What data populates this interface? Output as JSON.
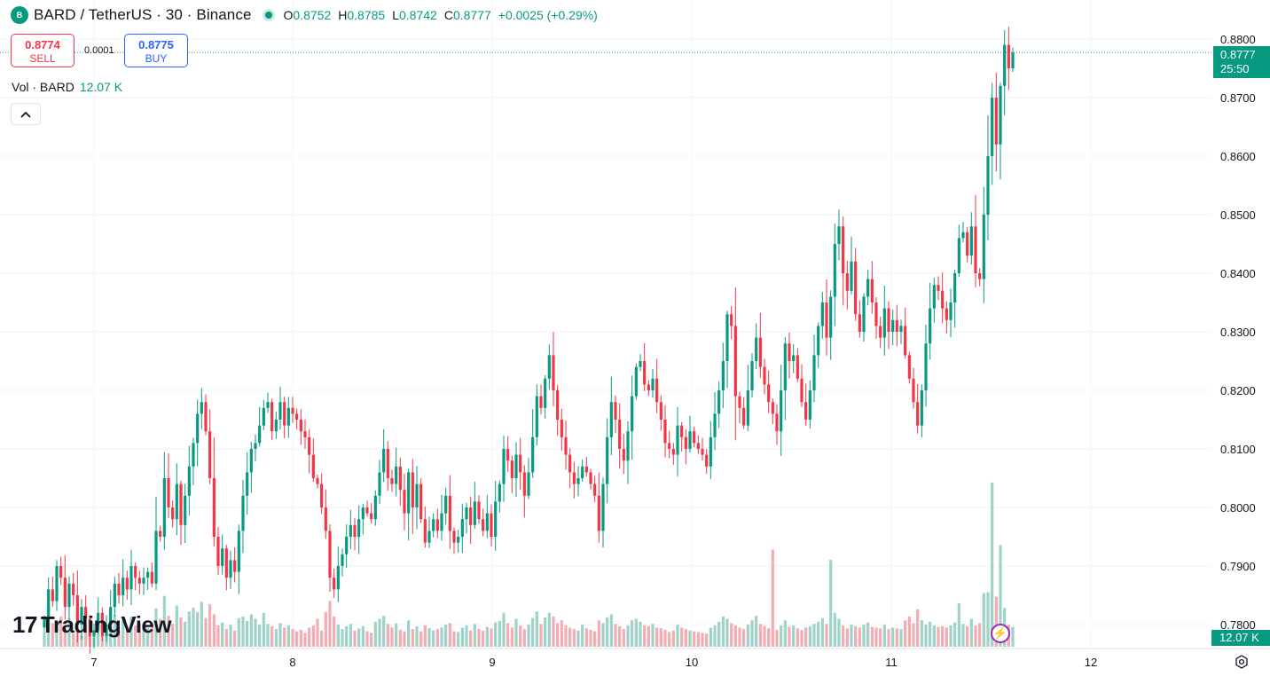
{
  "header": {
    "logo_icon": "bard-coin-icon",
    "symbol": "BARD / TetherUS · 30 · Binance",
    "ohlc": {
      "o_label": "O",
      "o": "0.8752",
      "h_label": "H",
      "h": "0.8785",
      "l_label": "L",
      "l": "0.8742",
      "c_label": "C",
      "c": "0.8777",
      "change": "+0.0025 (+0.29%)"
    }
  },
  "trade": {
    "sell_price": "0.8774",
    "sell_label": "SELL",
    "spread": "0.0001",
    "buy_price": "0.8775",
    "buy_label": "BUY"
  },
  "volume_legend": {
    "label": "Vol · BARD",
    "value": "12.07 K"
  },
  "branding": {
    "name": "TradingView"
  },
  "price_tag": {
    "price": "0.8777",
    "countdown": "25:50"
  },
  "volume_tag": "12.07 K",
  "colors": {
    "up": "#089981",
    "down": "#f23645",
    "up_vol": "#9fd3c9",
    "down_vol": "#f2aeb3",
    "grid": "#f0f3fa"
  },
  "chart_data": {
    "type": "candlestick",
    "interval": "30",
    "x_ticks": [
      "7",
      "8",
      "9",
      "10",
      "11",
      "12"
    ],
    "y_ticks": [
      "0.7800",
      "0.7900",
      "0.8000",
      "0.8100",
      "0.8200",
      "0.8300",
      "0.8400",
      "0.8500",
      "0.8600",
      "0.8700",
      "0.8800"
    ],
    "ylim": [
      0.7785,
      0.8835
    ],
    "last_price": 0.8777,
    "candles_per_day": 48,
    "start_offset_candles": 12,
    "grid": true,
    "volume_last": "12.07 K",
    "close_path": [
      0.781,
      0.786,
      0.784,
      0.79,
      0.788,
      0.783,
      0.787,
      0.785,
      0.78,
      0.783,
      0.781,
      0.778,
      0.779,
      0.782,
      0.778,
      0.78,
      0.783,
      0.787,
      0.785,
      0.788,
      0.786,
      0.79,
      0.788,
      0.787,
      0.788,
      0.789,
      0.787,
      0.796,
      0.795,
      0.805,
      0.8,
      0.798,
      0.804,
      0.797,
      0.802,
      0.807,
      0.811,
      0.816,
      0.818,
      0.813,
      0.805,
      0.795,
      0.79,
      0.793,
      0.788,
      0.791,
      0.789,
      0.796,
      0.802,
      0.806,
      0.81,
      0.811,
      0.814,
      0.817,
      0.818,
      0.813,
      0.815,
      0.818,
      0.814,
      0.817,
      0.816,
      0.815,
      0.813,
      0.812,
      0.809,
      0.805,
      0.804,
      0.8,
      0.796,
      0.788,
      0.786,
      0.79,
      0.792,
      0.795,
      0.797,
      0.795,
      0.798,
      0.8,
      0.799,
      0.798,
      0.802,
      0.806,
      0.81,
      0.805,
      0.804,
      0.807,
      0.803,
      0.799,
      0.806,
      0.8,
      0.804,
      0.798,
      0.794,
      0.796,
      0.798,
      0.796,
      0.799,
      0.802,
      0.796,
      0.794,
      0.795,
      0.798,
      0.8,
      0.797,
      0.801,
      0.798,
      0.796,
      0.799,
      0.795,
      0.801,
      0.804,
      0.81,
      0.808,
      0.805,
      0.809,
      0.806,
      0.802,
      0.806,
      0.812,
      0.819,
      0.817,
      0.822,
      0.826,
      0.82,
      0.815,
      0.812,
      0.809,
      0.806,
      0.804,
      0.805,
      0.807,
      0.806,
      0.804,
      0.802,
      0.796,
      0.804,
      0.812,
      0.818,
      0.815,
      0.81,
      0.808,
      0.813,
      0.819,
      0.824,
      0.825,
      0.821,
      0.82,
      0.822,
      0.818,
      0.815,
      0.811,
      0.81,
      0.809,
      0.814,
      0.812,
      0.81,
      0.813,
      0.811,
      0.81,
      0.809,
      0.807,
      0.812,
      0.816,
      0.82,
      0.825,
      0.833,
      0.831,
      0.819,
      0.817,
      0.814,
      0.82,
      0.825,
      0.829,
      0.824,
      0.821,
      0.818,
      0.816,
      0.813,
      0.82,
      0.828,
      0.825,
      0.826,
      0.822,
      0.818,
      0.815,
      0.82,
      0.826,
      0.831,
      0.835,
      0.829,
      0.836,
      0.845,
      0.848,
      0.84,
      0.837,
      0.842,
      0.833,
      0.83,
      0.836,
      0.839,
      0.835,
      0.831,
      0.829,
      0.834,
      0.83,
      0.832,
      0.83,
      0.831,
      0.826,
      0.822,
      0.818,
      0.814,
      0.82,
      0.828,
      0.834,
      0.838,
      0.837,
      0.834,
      0.832,
      0.835,
      0.84,
      0.846,
      0.847,
      0.843,
      0.848,
      0.84,
      0.839,
      0.85,
      0.86,
      0.87,
      0.862,
      0.872,
      0.879,
      0.875,
      0.8777
    ],
    "volume_path": [
      2.1,
      5.7,
      3.2,
      2.8,
      4.1,
      2.5,
      3.9,
      1.8,
      2.4,
      1.6,
      2.9,
      1.4,
      1.9,
      2.2,
      1.5,
      2.4,
      3.0,
      4.3,
      2.1,
      3.6,
      2.8,
      4.1,
      2.9,
      3.2,
      3.0,
      2.6,
      2.9,
      5.2,
      3.8,
      6.9,
      4.2,
      3.1,
      5.6,
      4.0,
      3.4,
      4.8,
      5.3,
      4.7,
      6.1,
      3.9,
      5.8,
      4.4,
      2.9,
      3.3,
      2.4,
      3.0,
      2.2,
      3.9,
      4.1,
      3.5,
      4.4,
      3.8,
      3.0,
      4.6,
      3.1,
      2.8,
      2.4,
      3.2,
      2.6,
      2.9,
      2.4,
      2.1,
      2.3,
      1.9,
      2.6,
      2.9,
      3.8,
      2.2,
      4.7,
      6.2,
      4.1,
      3.0,
      2.4,
      2.8,
      3.1,
      2.2,
      2.5,
      2.8,
      2.1,
      1.9,
      3.4,
      3.8,
      4.2,
      3.1,
      2.6,
      3.2,
      2.3,
      2.1,
      3.6,
      2.4,
      2.8,
      2.1,
      2.9,
      2.5,
      2.2,
      2.4,
      2.6,
      3.0,
      3.2,
      2.1,
      2.0,
      2.6,
      2.9,
      2.2,
      3.1,
      2.4,
      2.2,
      2.7,
      2.5,
      3.3,
      3.5,
      4.6,
      3.2,
      2.6,
      3.8,
      2.9,
      2.4,
      3.0,
      3.9,
      4.8,
      3.1,
      4.0,
      4.6,
      4.1,
      3.2,
      3.6,
      2.9,
      2.6,
      2.4,
      2.2,
      3.0,
      2.5,
      2.3,
      2.1,
      3.6,
      3.2,
      4.0,
      4.4,
      3.1,
      2.8,
      2.4,
      2.9,
      3.6,
      3.8,
      3.4,
      2.9,
      2.8,
      3.1,
      2.6,
      2.5,
      2.3,
      2.0,
      2.2,
      3.0,
      2.6,
      2.4,
      2.2,
      2.1,
      2.0,
      1.9,
      1.8,
      2.6,
      2.9,
      3.4,
      4.1,
      3.8,
      3.2,
      2.9,
      2.6,
      2.4,
      3.0,
      3.6,
      4.2,
      3.1,
      2.8,
      2.5,
      13.2,
      2.3,
      2.9,
      3.6,
      2.7,
      2.9,
      2.5,
      2.3,
      2.6,
      2.8,
      3.1,
      3.4,
      3.9,
      3.1,
      11.8,
      4.6,
      3.8,
      2.9,
      2.5,
      3.0,
      2.8,
      2.6,
      3.0,
      3.3,
      2.7,
      2.6,
      2.5,
      3.0,
      2.4,
      2.6,
      2.5,
      2.4,
      3.6,
      4.1,
      3.2,
      5.1,
      3.6,
      3.0,
      3.4,
      2.9,
      2.7,
      2.8,
      2.6,
      2.9,
      3.3,
      5.9,
      3.1,
      2.8,
      3.8,
      2.9,
      3.2,
      7.3,
      7.4,
      22.3,
      6.8,
      13.8,
      5.3,
      3.0,
      2.7
    ]
  }
}
